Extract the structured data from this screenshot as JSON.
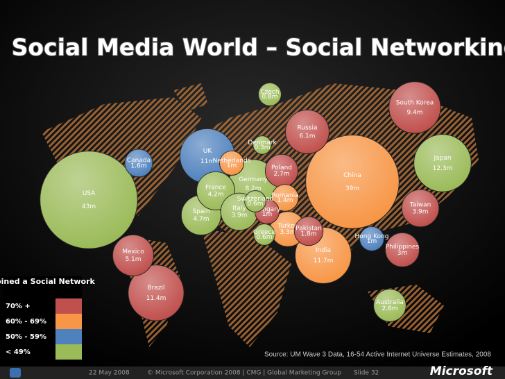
{
  "chart_data": {
    "type": "bubble",
    "title": "Social Media World – Social Networking",
    "legend_title": "% Joined a Social Network",
    "series": [
      {
        "name": "70% +",
        "color": "#c0504d",
        "categories": [
          "South Korea",
          "Russia",
          "Poland",
          "Hungary",
          "Pakistan",
          "Taiwan",
          "Philippines",
          "Mexico",
          "Brazil"
        ],
        "values": [
          9.4,
          6.1,
          2.7,
          1,
          1.8,
          3.9,
          3,
          5.1,
          11.4
        ],
        "value_labels": [
          "9.4m",
          "6.1m",
          "2.7m",
          "1m",
          "1.8m",
          "3.9m",
          "3m",
          "5.1m",
          "11.4m"
        ]
      },
      {
        "name": "60% - 69%",
        "color": "#f79646",
        "categories": [
          "Netherlands",
          "Romania",
          "Turkey",
          "China",
          "India"
        ],
        "values": [
          1,
          1.4,
          3.3,
          39,
          11.7
        ],
        "value_labels": [
          "1m",
          "1.4m",
          "3.3m",
          "39m",
          "11.7m"
        ]
      },
      {
        "name": "50% - 59%",
        "color": "#4f81bd",
        "categories": [
          "UK",
          "Canada",
          "Hong Kong"
        ],
        "values": [
          11,
          1.6,
          1
        ],
        "value_labels": [
          "11m",
          "1.6m",
          "1m"
        ]
      },
      {
        "name": "< 49%",
        "color": "#9bbb59",
        "categories": [
          "Czech",
          "Denmark",
          "Germany",
          "France",
          "Switzerland",
          "Spain",
          "Italy",
          "Greece",
          "Japan",
          "USA",
          "Australia"
        ],
        "values": [
          0.8,
          0.3,
          8.2,
          4.2,
          0.6,
          4.7,
          3.9,
          0.6,
          12.3,
          43,
          2.6
        ],
        "value_labels": [
          "0.8m",
          "0.3m",
          "8.2m",
          "4.2m",
          "0.6m",
          "4.7m",
          "3.9m",
          "0.6m",
          "12.3m",
          "43m",
          "2.6m"
        ]
      }
    ],
    "source": "Source: UM Wave 3 Data, 16-54 Active Internet Universe Estimates, 2008",
    "footer": {
      "date": "22 May 2008",
      "copyright": "© Microsoft Corporation 2008 | CMG | Global Marketing Group",
      "slide": "Slide 32",
      "logo": "Microsoft"
    }
  }
}
